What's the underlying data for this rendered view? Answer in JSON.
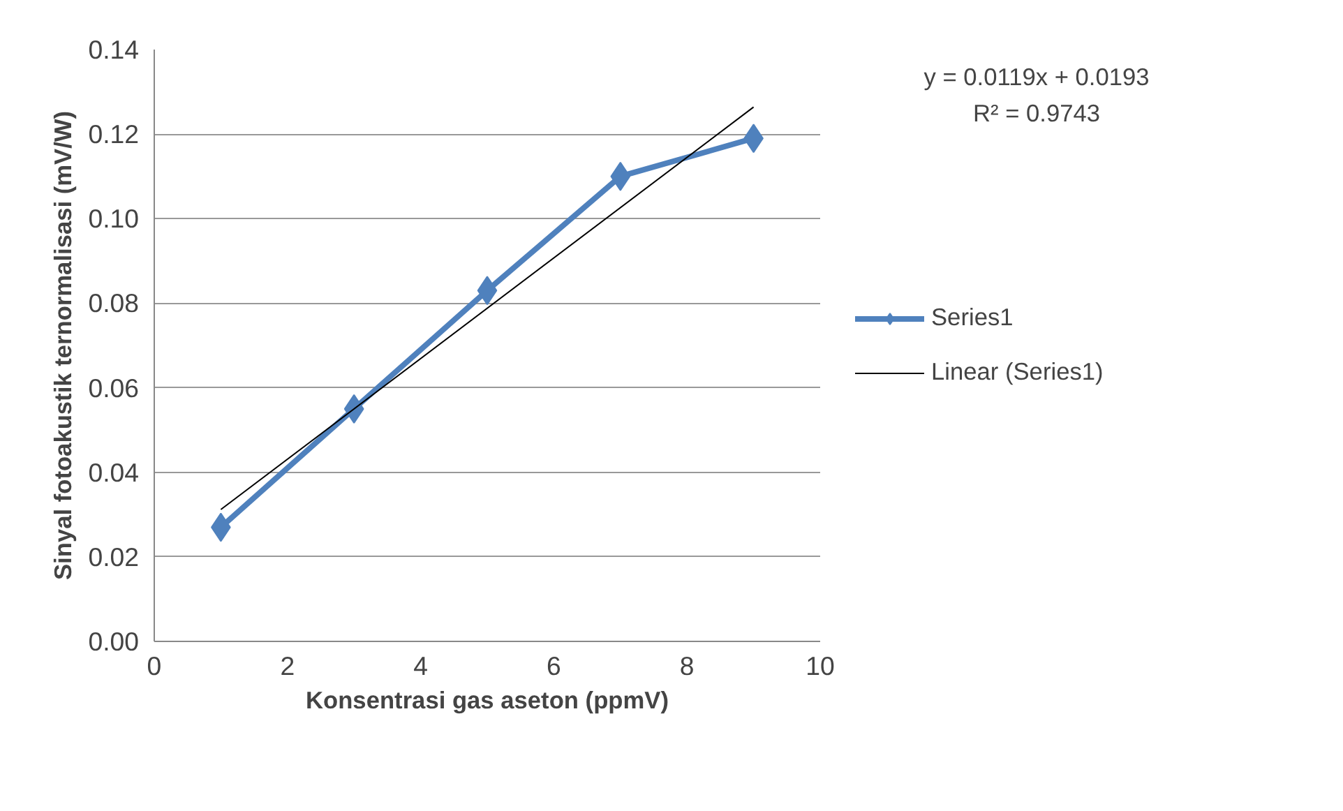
{
  "chart_data": {
    "type": "line",
    "xlabel": "Konsentrasi gas aseton (ppmV)",
    "ylabel": "Sinyal fotoakustik ternormalisasi (mV/W)",
    "x": [
      1,
      3,
      5,
      7,
      9
    ],
    "series": [
      {
        "name": "Series1",
        "color": "#4f81bd",
        "values": [
          0.027,
          0.055,
          0.083,
          0.11,
          0.119
        ],
        "marker": "diamond"
      },
      {
        "name": "Linear (Series1)",
        "type": "line",
        "color": "#000000",
        "x": [
          1,
          9
        ],
        "values": [
          0.0312,
          0.1264
        ],
        "marker": "none"
      }
    ],
    "xlim": [
      0,
      10
    ],
    "xticks": [
      0,
      2,
      4,
      6,
      8,
      10
    ],
    "ylim": [
      0,
      0.14
    ],
    "yticks": [
      {
        "value": 0,
        "label": "0.00"
      },
      {
        "value": 0.02,
        "label": "0.02"
      },
      {
        "value": 0.04,
        "label": "0.04"
      },
      {
        "value": 0.06,
        "label": "0.06"
      },
      {
        "value": 0.08,
        "label": "0.08"
      },
      {
        "value": 0.1,
        "label": "0.10"
      },
      {
        "value": 0.12,
        "label": "0.12"
      },
      {
        "value": 0.14,
        "label": "0.14"
      }
    ],
    "grid": "y",
    "legend": "right",
    "annotations": [
      "y = 0.0119x + 0.0193",
      "R² = 0.9743"
    ]
  }
}
